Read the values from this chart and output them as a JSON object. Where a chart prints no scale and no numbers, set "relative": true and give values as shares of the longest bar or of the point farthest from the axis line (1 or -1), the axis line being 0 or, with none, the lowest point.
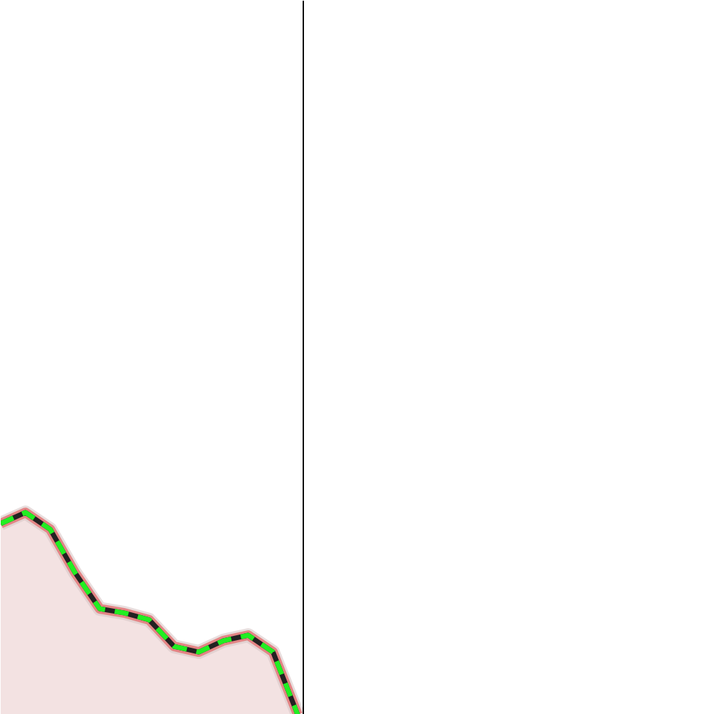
{
  "chart_data": {
    "type": "area",
    "relative": true,
    "categories": [
      null,
      null,
      null,
      null,
      null,
      null,
      null,
      null,
      null,
      null,
      null,
      null,
      null
    ],
    "series": [
      {
        "color": "#f3e2e2",
        "values": [
          0.945,
          1,
          0.917,
          0.703,
          0.524,
          0.503,
          0.469,
          0.338,
          0.31,
          0.366,
          0.393,
          0.31,
          0
        ]
      }
    ],
    "line_style": "dashed",
    "grid": false
  }
}
